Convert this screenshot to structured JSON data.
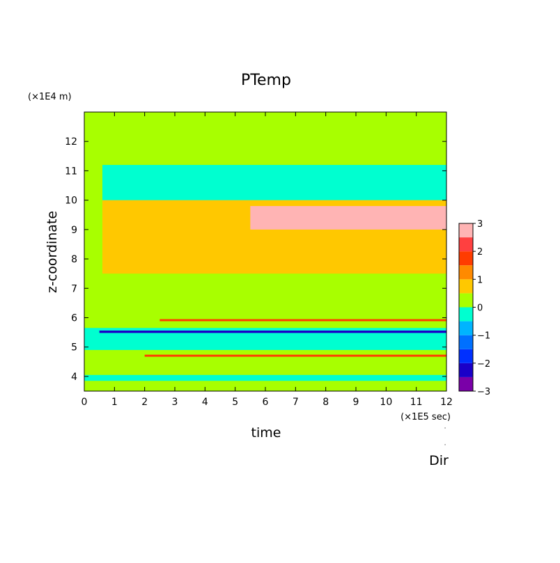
{
  "chart_data": {
    "type": "heatmap",
    "title": "PTemp",
    "xlabel": "time",
    "ylabel": "z-coordinate",
    "x_unit_label": "(×1E5 sec)",
    "y_unit_label": "(×1E4 m)",
    "footer_label": "Dir",
    "xlim": [
      0,
      12
    ],
    "ylim": [
      3.5,
      13
    ],
    "x_ticks": [
      0,
      1,
      2,
      3,
      4,
      5,
      6,
      7,
      8,
      9,
      10,
      11,
      12
    ],
    "y_ticks": [
      4,
      5,
      6,
      7,
      8,
      9,
      10,
      11,
      12
    ],
    "grid": false,
    "legend_position": "right",
    "colorbar": {
      "range": [
        -3,
        3
      ],
      "tick_labels": [
        "3",
        "2",
        "1",
        "0",
        "−1",
        "−2",
        "−3"
      ],
      "tick_values": [
        3,
        2,
        1,
        0,
        -1,
        -2,
        -3
      ],
      "levels": [
        {
          "min": -3.0,
          "max": -2.5,
          "color": "#7a00a8"
        },
        {
          "min": -2.5,
          "max": -2.0,
          "color": "#1a00c8"
        },
        {
          "min": -2.0,
          "max": -1.5,
          "color": "#0030ff"
        },
        {
          "min": -1.5,
          "max": -1.0,
          "color": "#0070ff"
        },
        {
          "min": -1.0,
          "max": -0.5,
          "color": "#00b4ff"
        },
        {
          "min": -0.5,
          "max": 0.0,
          "color": "#00ffd0"
        },
        {
          "min": 0.0,
          "max": 0.5,
          "color": "#a8ff00"
        },
        {
          "min": 0.5,
          "max": 1.0,
          "color": "#ffc800"
        },
        {
          "min": 1.0,
          "max": 1.5,
          "color": "#ff8a00"
        },
        {
          "min": 1.5,
          "max": 2.0,
          "color": "#ff3c00"
        },
        {
          "min": 2.0,
          "max": 2.5,
          "color": "#ff4040"
        },
        {
          "min": 2.5,
          "max": 3.0,
          "color": "#ffb4b4"
        }
      ]
    },
    "regions": [
      {
        "name": "background",
        "x": [
          0,
          12
        ],
        "y": [
          3.5,
          13
        ],
        "value": 0.2
      },
      {
        "name": "upper-cyan-layer",
        "x": [
          0.6,
          12
        ],
        "y": [
          9.9,
          11.2
        ],
        "value": -0.3
      },
      {
        "name": "lower-cyan-layer",
        "x": [
          0,
          12
        ],
        "y": [
          4.9,
          5.65
        ],
        "value": -0.3
      },
      {
        "name": "bottom-cyan-strip",
        "x": [
          0,
          12
        ],
        "y": [
          3.85,
          4.05
        ],
        "value": -0.3
      },
      {
        "name": "negative-band-5.5",
        "x": [
          0.5,
          12
        ],
        "y": [
          5.48,
          5.56
        ],
        "value": -2.2
      },
      {
        "name": "positive-band-5.9",
        "x": [
          2.5,
          12
        ],
        "y": [
          5.88,
          5.95
        ],
        "value": 1.7
      },
      {
        "name": "positive-band-4.7",
        "x": [
          2.0,
          12
        ],
        "y": [
          4.67,
          4.74
        ],
        "value": 1.7
      },
      {
        "name": "perturbation-zone",
        "x": [
          0.6,
          12
        ],
        "y": [
          7.5,
          10.0
        ],
        "value": 0.8
      },
      {
        "name": "strong-perturbation-zone",
        "x": [
          5.5,
          12
        ],
        "y": [
          9.0,
          9.8
        ],
        "value": 2.8
      }
    ]
  }
}
